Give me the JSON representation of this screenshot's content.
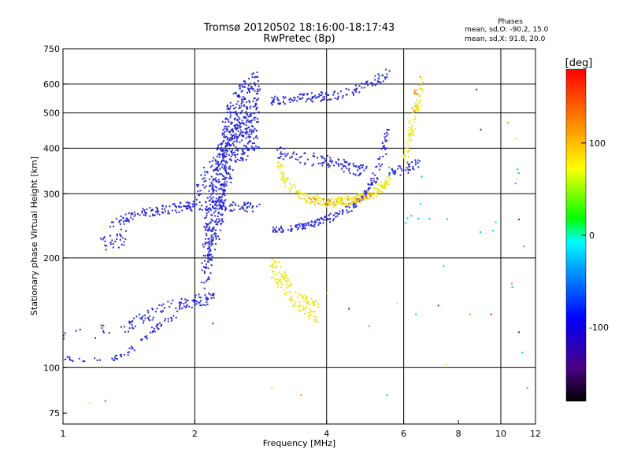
{
  "chart_data": {
    "type": "scatter",
    "title": "Tromsø 20120502 18:16:00-18:17:43",
    "subtitle": "RwPretec (8p)",
    "xlabel": "Frequency [MHz]",
    "ylabel": "Stationary phase Virtual Height [km]",
    "x_scale": "log",
    "y_scale": "log",
    "xlim": [
      1,
      12
    ],
    "ylim": [
      70,
      750
    ],
    "x_ticks": [
      1,
      2,
      4,
      6,
      8,
      10,
      12
    ],
    "y_ticks": [
      75,
      100,
      200,
      300,
      400,
      500,
      600,
      750
    ],
    "x_grid": [
      2,
      4,
      6,
      10
    ],
    "y_grid": [
      100,
      200,
      300,
      400,
      500,
      600
    ],
    "grid": true,
    "legend_title": "Phases",
    "legend_line_o": "mean, sd,O: -90.2, 15.0",
    "legend_line_x": "mean, sd,X:  91.8, 20.0",
    "colorbar": {
      "label": "[deg]",
      "ticks": [
        100,
        0,
        -100
      ],
      "range": [
        -180,
        180
      ],
      "colors": [
        "#000000",
        "#4b0082",
        "#0000ff",
        "#00a0ff",
        "#00ffff",
        "#00ff00",
        "#ffff00",
        "#ff8000",
        "#ff0000"
      ]
    },
    "series": [
      {
        "color": "#2828d8",
        "traces": [
          {
            "x": [
              1.0,
              1.2,
              1.4,
              1.5,
              1.6,
              1.7,
              1.8,
              1.9,
              2.0,
              2.1,
              2.2
            ],
            "y": [
              122,
              125,
              128,
              135,
              140,
              145,
              148,
              150,
              152,
              154,
              156
            ],
            "noise": 0.04,
            "n": 120
          },
          {
            "x": [
              1.0,
              1.1,
              1.3,
              1.4,
              1.5,
              1.6,
              1.7,
              1.8
            ],
            "y": [
              106,
              105,
              106,
              110,
              118,
              126,
              133,
              138
            ],
            "noise": 0.015,
            "n": 70
          },
          {
            "x": [
              1.3,
              1.4,
              1.5,
              1.6,
              1.7,
              1.8,
              1.9,
              2.0,
              2.2,
              2.4,
              2.6,
              2.8
            ],
            "y": [
              250,
              258,
              263,
              268,
              272,
              274,
              276,
              278,
              278,
              277,
              276,
              275
            ],
            "noise": 0.03,
            "n": 180
          },
          {
            "x": [
              2.0,
              2.1,
              2.2,
              2.3,
              2.4,
              2.5,
              2.6,
              2.7
            ],
            "y": [
              300,
              330,
              360,
              390,
              420,
              440,
              460,
              480
            ],
            "noise": 0.05,
            "n": 90
          },
          {
            "x": [
              2.1,
              2.15,
              2.2,
              2.25,
              2.3,
              2.35,
              2.4,
              2.5,
              2.6,
              2.7,
              2.8
            ],
            "y": [
              200,
              230,
              260,
              290,
              330,
              380,
              420,
              460,
              480,
              500,
              510
            ],
            "noise": 0.25,
            "n": 700
          },
          {
            "x": [
              3.0,
              3.2,
              3.4,
              3.6,
              3.8,
              4.0,
              4.2,
              4.5,
              4.8,
              5.0,
              5.2,
              5.4,
              5.5
            ],
            "y": [
              238,
              240,
              243,
              246,
              250,
              255,
              262,
              272,
              290,
              310,
              340,
              390,
              450
            ],
            "noise": 0.02,
            "n": 200
          },
          {
            "x": [
              3.0,
              3.2,
              3.5,
              3.8,
              4.0,
              4.3,
              4.6,
              5.0,
              5.3,
              5.5
            ],
            "y": [
              540,
              545,
              548,
              552,
              555,
              560,
              575,
              600,
              625,
              640
            ],
            "noise": 0.03,
            "n": 140
          },
          {
            "x": [
              3.1,
              3.3,
              3.6,
              3.9,
              4.1,
              4.3,
              4.5,
              4.7,
              4.9
            ],
            "y": [
              390,
              380,
              375,
              370,
              365,
              360,
              355,
              350,
              345
            ],
            "noise": 0.04,
            "n": 110
          },
          {
            "x": [
              1.2,
              1.25,
              1.3,
              1.35,
              1.4
            ],
            "y": [
              215,
              218,
              222,
              225,
              230
            ],
            "noise": 0.05,
            "n": 30
          },
          {
            "x": [
              5.6,
              5.8,
              6.0,
              6.2,
              6.4,
              6.6
            ],
            "y": [
              340,
              345,
              350,
              355,
              360,
              365
            ],
            "noise": 0.03,
            "n": 40
          }
        ]
      },
      {
        "color": "#e8e818",
        "traces": [
          {
            "x": [
              3.0,
              3.1,
              3.2,
              3.3,
              3.4,
              3.5,
              3.6,
              3.7,
              3.8
            ],
            "y": [
              190,
              180,
              170,
              162,
              155,
              150,
              148,
              145,
              142
            ],
            "noise": 0.07,
            "n": 140
          },
          {
            "x": [
              3.1,
              3.2,
              3.4,
              3.6,
              3.8,
              4.0,
              4.2,
              4.4,
              4.6,
              4.8,
              5.0,
              5.2,
              5.4,
              5.6
            ],
            "y": [
              370,
              330,
              300,
              292,
              287,
              284,
              284,
              286,
              289,
              293,
              298,
              305,
              315,
              330
            ],
            "noise": 0.03,
            "n": 220
          },
          {
            "x": [
              6.0,
              6.1,
              6.2,
              6.3,
              6.4,
              6.5,
              6.6
            ],
            "y": [
              380,
              400,
              430,
              460,
              500,
              540,
              600
            ],
            "noise": 0.05,
            "n": 70
          }
        ]
      },
      {
        "color": "#ff8c00",
        "traces": [
          {
            "x": [
              3.6,
              3.9,
              4.2,
              4.5,
              4.8,
              5.1
            ],
            "y": [
              290,
              285,
              283,
              286,
              290,
              297
            ],
            "noise": 0.02,
            "n": 40
          },
          {
            "x": [
              6.3,
              6.5
            ],
            "y": [
              520,
              600
            ],
            "noise": 0.05,
            "n": 12
          }
        ]
      },
      {
        "color": "#00c0ff",
        "traces": [
          {
            "x": [
              5.5,
              6.0,
              6.6,
              7.0,
              9.0,
              10.5,
              11.0
            ],
            "y": [
              420,
              260,
              300,
              210,
              250,
              180,
              450
            ],
            "noise": 0.2,
            "n": 18
          }
        ]
      }
    ],
    "sparse_points": [
      {
        "x": 1.15,
        "y": 80,
        "color": "#e8e818"
      },
      {
        "x": 1.25,
        "y": 81,
        "color": "#00c000"
      },
      {
        "x": 3.5,
        "y": 84,
        "color": "#ff8c00"
      },
      {
        "x": 3.0,
        "y": 88,
        "color": "#e8e818"
      },
      {
        "x": 5.5,
        "y": 84,
        "color": "#00c0ff"
      },
      {
        "x": 4.0,
        "y": 160,
        "color": "#ff8c00"
      },
      {
        "x": 4.5,
        "y": 145,
        "color": "#2828d8"
      },
      {
        "x": 5.0,
        "y": 130,
        "color": "#00c0ff"
      },
      {
        "x": 5.8,
        "y": 150,
        "color": "#e8e818"
      },
      {
        "x": 7.5,
        "y": 102,
        "color": "#e8e818"
      },
      {
        "x": 8.5,
        "y": 140,
        "color": "#ff8c00"
      },
      {
        "x": 9.0,
        "y": 450,
        "color": "#2828d8"
      },
      {
        "x": 8.8,
        "y": 580,
        "color": "#2828d8"
      },
      {
        "x": 10.4,
        "y": 470,
        "color": "#ff8c00"
      },
      {
        "x": 10.8,
        "y": 425,
        "color": "#e8e818"
      },
      {
        "x": 10.9,
        "y": 330,
        "color": "#e8e818"
      },
      {
        "x": 11.0,
        "y": 255,
        "color": "#2828d8"
      },
      {
        "x": 11.2,
        "y": 110,
        "color": "#00c0ff"
      },
      {
        "x": 11.0,
        "y": 125,
        "color": "#2828d8"
      },
      {
        "x": 11.5,
        "y": 88,
        "color": "#00c0ff"
      },
      {
        "x": 10.6,
        "y": 170,
        "color": "#ff8c00"
      },
      {
        "x": 11.3,
        "y": 215,
        "color": "#00c0ff"
      },
      {
        "x": 9.5,
        "y": 140,
        "color": "#ff0000"
      },
      {
        "x": 6.4,
        "y": 140,
        "color": "#00c0ff"
      },
      {
        "x": 7.2,
        "y": 148,
        "color": "#ff0000"
      },
      {
        "x": 2.2,
        "y": 132,
        "color": "#ff0000"
      }
    ]
  }
}
